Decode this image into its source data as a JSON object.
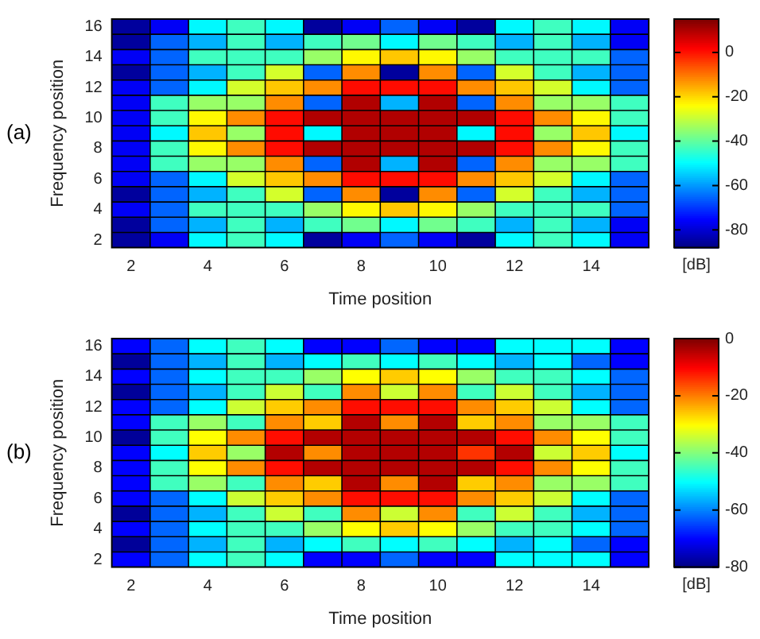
{
  "chart_data": [
    {
      "type": "heatmap",
      "title": "(a)",
      "xlabel": "Time position",
      "ylabel": "Frequency position",
      "clabel": "[dB]",
      "categories": [
        "2",
        null,
        "4",
        null,
        "6",
        null,
        "8",
        null,
        "10",
        null,
        "12",
        null,
        "14",
        null
      ],
      "y_categories": [
        "16",
        null,
        "14",
        null,
        "12",
        null,
        "10",
        null,
        "8",
        null,
        "6",
        null,
        "4",
        null,
        "2"
      ],
      "clim": [
        -88,
        15
      ],
      "cticks": [
        -80,
        -60,
        -40,
        -20,
        0
      ],
      "cells": [
        [
          -85,
          -76,
          -50,
          -43,
          -50,
          -85,
          -76,
          -65,
          -76,
          -85,
          -50,
          -43,
          -50,
          -76
        ],
        [
          -85,
          -65,
          -57,
          -43,
          -57,
          -43,
          -38,
          -50,
          -38,
          -43,
          -57,
          -43,
          -57,
          -76
        ],
        [
          -76,
          -65,
          -43,
          -43,
          -43,
          -34,
          -23,
          -18,
          -23,
          -34,
          -43,
          -43,
          -43,
          -65
        ],
        [
          -85,
          -65,
          -57,
          -43,
          -28,
          -65,
          -12,
          -85,
          -12,
          -65,
          -28,
          -43,
          -57,
          -65
        ],
        [
          -76,
          -65,
          -50,
          -28,
          -18,
          -12,
          1,
          1,
          1,
          -12,
          -18,
          -28,
          -50,
          -65
        ],
        [
          -76,
          -43,
          -34,
          -34,
          -12,
          -65,
          10,
          -57,
          10,
          -65,
          -12,
          -34,
          -34,
          -43
        ],
        [
          -76,
          -43,
          -23,
          -12,
          1,
          10,
          10,
          10,
          10,
          10,
          1,
          -12,
          -23,
          -43
        ],
        [
          -76,
          -50,
          -18,
          -34,
          1,
          -50,
          10,
          10,
          10,
          -50,
          1,
          -34,
          -18,
          -50
        ],
        [
          -76,
          -43,
          -23,
          -12,
          1,
          10,
          10,
          10,
          10,
          10,
          1,
          -12,
          -23,
          -43
        ],
        [
          -76,
          -43,
          -34,
          -34,
          -12,
          -65,
          10,
          -57,
          10,
          -65,
          -12,
          -34,
          -34,
          -43
        ],
        [
          -76,
          -65,
          -50,
          -28,
          -18,
          -12,
          1,
          1,
          1,
          -12,
          -18,
          -28,
          -50,
          -65
        ],
        [
          -85,
          -65,
          -57,
          -43,
          -28,
          -65,
          -12,
          -85,
          -12,
          -65,
          -28,
          -43,
          -57,
          -65
        ],
        [
          -76,
          -65,
          -43,
          -43,
          -43,
          -34,
          -23,
          -18,
          -23,
          -34,
          -43,
          -43,
          -43,
          -65
        ],
        [
          -85,
          -65,
          -57,
          -43,
          -57,
          -43,
          -38,
          -50,
          -38,
          -43,
          -57,
          -43,
          -57,
          -76
        ],
        [
          -85,
          -76,
          -50,
          -43,
          -50,
          -85,
          -76,
          -65,
          -76,
          -85,
          -50,
          -43,
          -50,
          -76
        ]
      ]
    },
    {
      "type": "heatmap",
      "title": "(b)",
      "xlabel": "Time position",
      "ylabel": "Frequency position",
      "clabel": "[dB]",
      "categories": [
        "2",
        null,
        "4",
        null,
        "6",
        null,
        "8",
        null,
        "10",
        null,
        "12",
        null,
        "14",
        null
      ],
      "y_categories": [
        "16",
        null,
        "14",
        null,
        "12",
        null,
        "10",
        null,
        "8",
        null,
        "6",
        null,
        "4",
        null,
        "2"
      ],
      "clim": [
        -80,
        0
      ],
      "cticks": [
        -80,
        -60,
        -40,
        -20,
        0
      ],
      "cells": [
        [
          -70,
          -62,
          -50,
          -45,
          -50,
          -70,
          -70,
          -62,
          -70,
          -70,
          -50,
          -50,
          -50,
          -70
        ],
        [
          -78,
          -62,
          -56,
          -45,
          -56,
          -50,
          -45,
          -50,
          -45,
          -50,
          -56,
          -50,
          -62,
          -70
        ],
        [
          -70,
          -62,
          -50,
          -45,
          -45,
          -38,
          -30,
          -26,
          -30,
          -38,
          -45,
          -45,
          -50,
          -62
        ],
        [
          -78,
          -62,
          -56,
          -45,
          -34,
          -45,
          -21,
          -34,
          -21,
          -45,
          -34,
          -45,
          -56,
          -62
        ],
        [
          -70,
          -62,
          -50,
          -34,
          -26,
          -21,
          -11,
          -11,
          -11,
          -21,
          -26,
          -34,
          -50,
          -62
        ],
        [
          -70,
          -45,
          -38,
          -45,
          -21,
          -26,
          -4,
          -21,
          -4,
          -26,
          -21,
          -38,
          -38,
          -45
        ],
        [
          -78,
          -45,
          -30,
          -21,
          -11,
          -4,
          -4,
          -4,
          -4,
          -4,
          -11,
          -21,
          -30,
          -45
        ],
        [
          -70,
          -50,
          -26,
          -38,
          -4,
          -21,
          -4,
          -4,
          -4,
          -14,
          -4,
          -34,
          -26,
          -50
        ],
        [
          -70,
          -45,
          -30,
          -21,
          -11,
          -4,
          -4,
          -4,
          -4,
          -4,
          -11,
          -21,
          -30,
          -45
        ],
        [
          -70,
          -45,
          -38,
          -45,
          -21,
          -26,
          -4,
          -21,
          -4,
          -26,
          -21,
          -38,
          -38,
          -45
        ],
        [
          -70,
          -62,
          -50,
          -34,
          -26,
          -21,
          -11,
          -11,
          -11,
          -21,
          -26,
          -34,
          -50,
          -62
        ],
        [
          -78,
          -62,
          -56,
          -45,
          -34,
          -45,
          -21,
          -34,
          -21,
          -45,
          -34,
          -45,
          -56,
          -62
        ],
        [
          -70,
          -62,
          -50,
          -45,
          -45,
          -38,
          -30,
          -26,
          -30,
          -38,
          -45,
          -45,
          -50,
          -62
        ],
        [
          -78,
          -62,
          -56,
          -45,
          -56,
          -50,
          -45,
          -50,
          -45,
          -50,
          -56,
          -50,
          -62,
          -70
        ],
        [
          -70,
          -62,
          -50,
          -45,
          -50,
          -70,
          -70,
          -62,
          -70,
          -70,
          -50,
          -50,
          -50,
          -70
        ]
      ]
    }
  ]
}
